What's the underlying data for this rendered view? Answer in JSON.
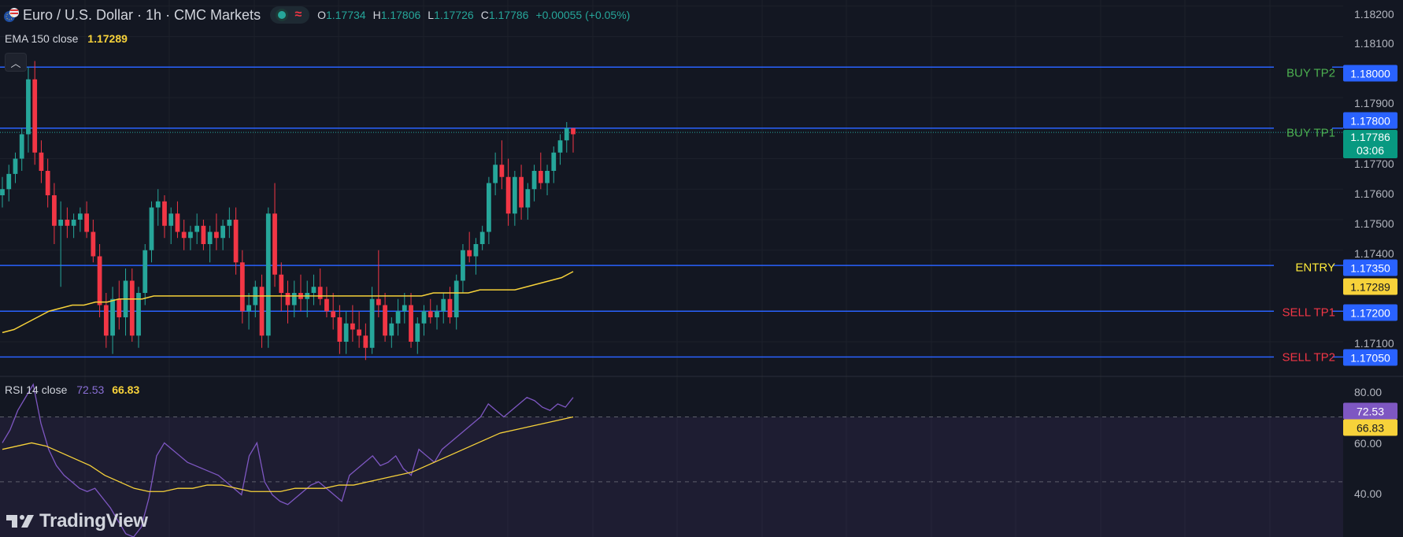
{
  "header": {
    "symbol_title": "Euro / U.S. Dollar · 1h · CMC Markets",
    "ohlc": [
      {
        "key": "O",
        "value": "1.17734"
      },
      {
        "key": "H",
        "value": "1.17806"
      },
      {
        "key": "L",
        "value": "1.17726"
      },
      {
        "key": "C",
        "value": "1.17786"
      }
    ],
    "change": "+0.00055 (+0.05%)"
  },
  "indicators": {
    "ema": {
      "label": "EMA 150 close",
      "value": "1.17289"
    },
    "rsi": {
      "label": "RSI 14 close",
      "value": "72.53",
      "ma_value": "66.83"
    }
  },
  "price_axis": {
    "ticks": [
      "1.18200",
      "1.18100",
      "1.17900",
      "1.17700",
      "1.17600",
      "1.17500",
      "1.17400",
      "1.17100"
    ],
    "rsi_ticks": [
      "80.00",
      "60.00",
      "40.00"
    ]
  },
  "levels": [
    {
      "label": "BUY TP2",
      "price": "1.18000",
      "color": "#4caf50"
    },
    {
      "label": "BUY TP1",
      "price": "1.17800",
      "color": "#4caf50"
    },
    {
      "label": "ENTRY",
      "price": "1.17350",
      "color": "#ffeb3b"
    },
    {
      "label": "SELL TP1",
      "price": "1.17200",
      "color": "#f23645"
    },
    {
      "label": "SELL TP2",
      "price": "1.17050",
      "color": "#f23645"
    }
  ],
  "current_price": {
    "price": "1.17786",
    "countdown": "03:06"
  },
  "ema_tag": "1.17289",
  "rsi_tags": {
    "rsi": "72.53",
    "ma": "66.83"
  },
  "brand": {
    "name": "TradingView"
  },
  "colors": {
    "background": "#131722",
    "up": "#26a69a",
    "down": "#f23645",
    "level_line": "#2962ff",
    "ema": "#f7d23a",
    "rsi": "#7e57c2"
  },
  "chart_data": {
    "type": "candlestick",
    "interval": "1h",
    "ylim": [
      1.1702,
      1.1822
    ],
    "candles": [
      [
        1.1758,
        1.1764,
        1.1754,
        1.176
      ],
      [
        1.176,
        1.1768,
        1.1756,
        1.1765
      ],
      [
        1.1765,
        1.1772,
        1.1762,
        1.177
      ],
      [
        1.177,
        1.178,
        1.1766,
        1.1778
      ],
      [
        1.1778,
        1.18,
        1.1772,
        1.1796
      ],
      [
        1.1796,
        1.1802,
        1.1768,
        1.1772
      ],
      [
        1.1772,
        1.1776,
        1.1762,
        1.1766
      ],
      [
        1.1766,
        1.177,
        1.1754,
        1.1758
      ],
      [
        1.1758,
        1.1762,
        1.1742,
        1.1748
      ],
      [
        1.1748,
        1.1756,
        1.1728,
        1.175
      ],
      [
        1.175,
        1.1754,
        1.1744,
        1.1748
      ],
      [
        1.1748,
        1.1752,
        1.1744,
        1.175
      ],
      [
        1.175,
        1.1754,
        1.1746,
        1.1752
      ],
      [
        1.1752,
        1.1756,
        1.1744,
        1.1746
      ],
      [
        1.1746,
        1.175,
        1.1736,
        1.1738
      ],
      [
        1.1738,
        1.1742,
        1.1718,
        1.1722
      ],
      [
        1.1722,
        1.1726,
        1.1708,
        1.1712
      ],
      [
        1.1712,
        1.1728,
        1.1706,
        1.1724
      ],
      [
        1.1724,
        1.173,
        1.1714,
        1.1718
      ],
      [
        1.1718,
        1.1734,
        1.1712,
        1.173
      ],
      [
        1.173,
        1.1734,
        1.171,
        1.1712
      ],
      [
        1.1712,
        1.1728,
        1.1708,
        1.1726
      ],
      [
        1.1726,
        1.1742,
        1.1722,
        1.174
      ],
      [
        1.174,
        1.1756,
        1.1736,
        1.1754
      ],
      [
        1.1754,
        1.176,
        1.1748,
        1.1756
      ],
      [
        1.1756,
        1.1758,
        1.1744,
        1.1748
      ],
      [
        1.1748,
        1.1754,
        1.1742,
        1.1752
      ],
      [
        1.1752,
        1.1756,
        1.1744,
        1.1746
      ],
      [
        1.1746,
        1.175,
        1.174,
        1.1744
      ],
      [
        1.1744,
        1.1748,
        1.174,
        1.1746
      ],
      [
        1.1746,
        1.1752,
        1.1742,
        1.1748
      ],
      [
        1.1748,
        1.175,
        1.174,
        1.1742
      ],
      [
        1.1742,
        1.1748,
        1.1736,
        1.1746
      ],
      [
        1.1746,
        1.1752,
        1.174,
        1.1744
      ],
      [
        1.1744,
        1.175,
        1.174,
        1.1748
      ],
      [
        1.1748,
        1.1754,
        1.1744,
        1.175
      ],
      [
        1.175,
        1.1754,
        1.1732,
        1.1736
      ],
      [
        1.1736,
        1.174,
        1.1716,
        1.172
      ],
      [
        1.172,
        1.1726,
        1.1714,
        1.1722
      ],
      [
        1.1722,
        1.173,
        1.1718,
        1.1728
      ],
      [
        1.1728,
        1.1732,
        1.1708,
        1.1712
      ],
      [
        1.1712,
        1.1754,
        1.1708,
        1.1752
      ],
      [
        1.1752,
        1.1762,
        1.1728,
        1.1732
      ],
      [
        1.1732,
        1.1736,
        1.172,
        1.1726
      ],
      [
        1.1726,
        1.173,
        1.1716,
        1.1722
      ],
      [
        1.1722,
        1.173,
        1.1718,
        1.1726
      ],
      [
        1.1726,
        1.1732,
        1.172,
        1.1724
      ],
      [
        1.1724,
        1.173,
        1.1718,
        1.1726
      ],
      [
        1.1726,
        1.1732,
        1.1722,
        1.1728
      ],
      [
        1.1728,
        1.1734,
        1.1722,
        1.1724
      ],
      [
        1.1724,
        1.1728,
        1.1718,
        1.172
      ],
      [
        1.172,
        1.1726,
        1.1714,
        1.1718
      ],
      [
        1.1718,
        1.1722,
        1.1706,
        1.171
      ],
      [
        1.171,
        1.172,
        1.1706,
        1.1716
      ],
      [
        1.1716,
        1.1722,
        1.171,
        1.1714
      ],
      [
        1.1714,
        1.172,
        1.1708,
        1.1712
      ],
      [
        1.1712,
        1.1716,
        1.1704,
        1.1708
      ],
      [
        1.1708,
        1.1728,
        1.1706,
        1.1724
      ],
      [
        1.1724,
        1.174,
        1.1718,
        1.1722
      ],
      [
        1.1722,
        1.1726,
        1.171,
        1.1712
      ],
      [
        1.1712,
        1.1718,
        1.1708,
        1.1716
      ],
      [
        1.1716,
        1.1724,
        1.1712,
        1.172
      ],
      [
        1.172,
        1.1726,
        1.1716,
        1.1722
      ],
      [
        1.1722,
        1.1726,
        1.1708,
        1.171
      ],
      [
        1.171,
        1.1718,
        1.1706,
        1.1716
      ],
      [
        1.1716,
        1.1722,
        1.1712,
        1.172
      ],
      [
        1.172,
        1.1724,
        1.1716,
        1.1718
      ],
      [
        1.1718,
        1.1722,
        1.1714,
        1.172
      ],
      [
        1.172,
        1.1726,
        1.1716,
        1.1724
      ],
      [
        1.1724,
        1.1728,
        1.1716,
        1.1718
      ],
      [
        1.1718,
        1.1732,
        1.1714,
        1.173
      ],
      [
        1.173,
        1.1742,
        1.1726,
        1.174
      ],
      [
        1.174,
        1.1746,
        1.1736,
        1.1738
      ],
      [
        1.1738,
        1.1744,
        1.1732,
        1.1742
      ],
      [
        1.1742,
        1.1748,
        1.174,
        1.1746
      ],
      [
        1.1746,
        1.1764,
        1.1742,
        1.1762
      ],
      [
        1.1762,
        1.1772,
        1.1758,
        1.1768
      ],
      [
        1.1768,
        1.1776,
        1.176,
        1.1764
      ],
      [
        1.1764,
        1.177,
        1.1748,
        1.1752
      ],
      [
        1.1752,
        1.1766,
        1.1748,
        1.1764
      ],
      [
        1.1764,
        1.1768,
        1.175,
        1.1754
      ],
      [
        1.1754,
        1.1762,
        1.175,
        1.176
      ],
      [
        1.176,
        1.1768,
        1.1756,
        1.1766
      ],
      [
        1.1766,
        1.1772,
        1.176,
        1.1762
      ],
      [
        1.1762,
        1.1768,
        1.1758,
        1.1766
      ],
      [
        1.1766,
        1.1774,
        1.1762,
        1.1772
      ],
      [
        1.1772,
        1.1778,
        1.1768,
        1.1776
      ],
      [
        1.1776,
        1.1782,
        1.1772,
        1.178
      ],
      [
        1.178,
        1.178,
        1.1772,
        1.1778
      ]
    ],
    "ema_series": [
      1.1713,
      1.1714,
      1.1716,
      1.1718,
      1.172,
      1.1721,
      1.1722,
      1.1722,
      1.1723,
      1.1723,
      1.1724,
      1.1724,
      1.1724,
      1.1725,
      1.1725,
      1.1725,
      1.1725,
      1.1725,
      1.1725,
      1.1725,
      1.1725,
      1.1725,
      1.1725,
      1.1725,
      1.1725,
      1.1725,
      1.1725,
      1.1725,
      1.1725,
      1.1725,
      1.1725,
      1.1725,
      1.1725,
      1.1725,
      1.1725,
      1.1725,
      1.1725,
      1.1726,
      1.1726,
      1.1726,
      1.1726,
      1.1727,
      1.1727,
      1.1727,
      1.1727,
      1.1728,
      1.1729,
      1.173,
      1.1731,
      1.1733
    ],
    "rsi_series": [
      62,
      66,
      72,
      76,
      80,
      68,
      60,
      55,
      52,
      50,
      48,
      47,
      48,
      45,
      42,
      38,
      34,
      33,
      36,
      45,
      58,
      62,
      60,
      58,
      56,
      55,
      54,
      53,
      52,
      50,
      48,
      46,
      58,
      62,
      50,
      46,
      44,
      43,
      45,
      47,
      49,
      50,
      48,
      46,
      44,
      52,
      54,
      56,
      58,
      55,
      56,
      58,
      54,
      52,
      60,
      58,
      56,
      60,
      62,
      64,
      66,
      68,
      70,
      74,
      72,
      70,
      72,
      74,
      76,
      75,
      73,
      72,
      74,
      73,
      76
    ],
    "rsi_ma_series": [
      60,
      61,
      62,
      61,
      59,
      57,
      55,
      52,
      50,
      48,
      47,
      47,
      48,
      48,
      49,
      49,
      48,
      47,
      47,
      47,
      48,
      48,
      48,
      49,
      49,
      50,
      51,
      52,
      53,
      55,
      57,
      59,
      61,
      63,
      65,
      66,
      67,
      68,
      69,
      70
    ],
    "rsi_ylim": [
      33,
      82
    ],
    "rsi_bands": [
      70,
      50,
      30
    ]
  }
}
